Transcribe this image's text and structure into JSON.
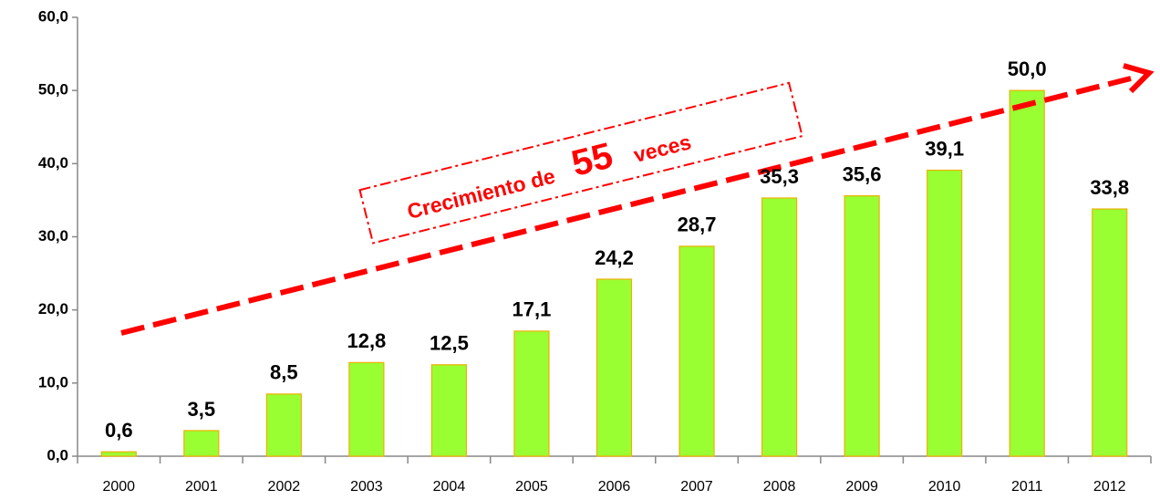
{
  "chart_data": {
    "type": "bar",
    "categories": [
      "2000",
      "2001",
      "2002",
      "2003",
      "2004",
      "2005",
      "2006",
      "2007",
      "2008",
      "2009",
      "2010",
      "2011",
      "2012"
    ],
    "values": [
      0.6,
      3.5,
      8.5,
      12.8,
      12.5,
      17.1,
      24.2,
      28.7,
      35.3,
      35.6,
      39.1,
      50.0,
      33.8
    ],
    "value_labels": [
      "0,6",
      "3,5",
      "8,5",
      "12,8",
      "12,5",
      "17,1",
      "24,2",
      "28,7",
      "35,3",
      "35,6",
      "39,1",
      "50,0",
      "33,8"
    ],
    "color": "#99ff33",
    "edge_color": "#f0b000",
    "ylim": [
      0,
      60
    ],
    "yticks": [
      {
        "value": 0,
        "label": "0,0"
      },
      {
        "value": 10,
        "label": "10,0"
      },
      {
        "value": 20,
        "label": "20,0"
      },
      {
        "value": 30,
        "label": "30,0"
      },
      {
        "value": 40,
        "label": "40,0"
      },
      {
        "value": 50,
        "label": "50,0"
      },
      {
        "value": 60,
        "label": "60,0"
      }
    ],
    "grid": false,
    "annotation": [
      "Crecimiento de",
      "55",
      "veces"
    ]
  }
}
